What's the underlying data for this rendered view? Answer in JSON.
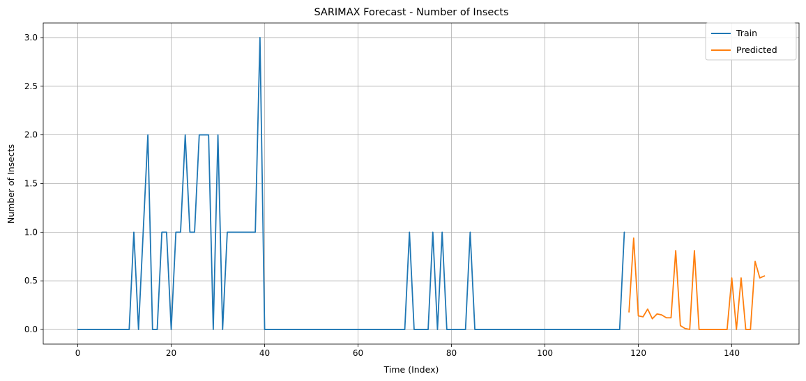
{
  "chart_data": {
    "type": "line",
    "title": "SARIMAX Forecast - Number of Insects",
    "xlabel": "Time (Index)",
    "ylabel": "Number of Insects",
    "xlim": [
      -7.4,
      154.4
    ],
    "ylim": [
      -0.15,
      3.15
    ],
    "xticks": [
      0,
      20,
      40,
      60,
      80,
      100,
      120,
      140
    ],
    "yticks": [
      "0.0",
      "0.5",
      "1.0",
      "1.5",
      "2.0",
      "2.5",
      "3.0"
    ],
    "grid": true,
    "legend": {
      "placement": "top-right"
    },
    "series": [
      {
        "name": "Train",
        "color": "#1f77b4",
        "x": [
          0,
          1,
          2,
          3,
          4,
          5,
          6,
          7,
          8,
          9,
          10,
          11,
          12,
          13,
          14,
          15,
          16,
          17,
          18,
          19,
          20,
          21,
          22,
          23,
          24,
          25,
          26,
          27,
          28,
          29,
          30,
          31,
          32,
          33,
          34,
          35,
          36,
          37,
          38,
          39,
          40,
          41,
          42,
          43,
          44,
          45,
          46,
          47,
          48,
          49,
          50,
          51,
          52,
          53,
          54,
          55,
          56,
          57,
          58,
          59,
          60,
          61,
          62,
          63,
          64,
          65,
          66,
          67,
          68,
          69,
          70,
          71,
          72,
          73,
          74,
          75,
          76,
          77,
          78,
          79,
          80,
          81,
          82,
          83,
          84,
          85,
          86,
          87,
          88,
          89,
          90,
          91,
          92,
          93,
          94,
          95,
          96,
          97,
          98,
          99,
          100,
          101,
          102,
          103,
          104,
          105,
          106,
          107,
          108,
          109,
          110,
          111,
          112,
          113,
          114,
          115,
          116,
          117
        ],
        "y": [
          0,
          0,
          0,
          0,
          0,
          0,
          0,
          0,
          0,
          0,
          0,
          0,
          1,
          0,
          1,
          2,
          0,
          0,
          1,
          1,
          0,
          1,
          1,
          2,
          1,
          1,
          2,
          2,
          2,
          0,
          2,
          0,
          1,
          1,
          1,
          1,
          1,
          1,
          1,
          3,
          0,
          0,
          0,
          0,
          0,
          0,
          0,
          0,
          0,
          0,
          0,
          0,
          0,
          0,
          0,
          0,
          0,
          0,
          0,
          0,
          0,
          0,
          0,
          0,
          0,
          0,
          0,
          0,
          0,
          0,
          0,
          1,
          0,
          0,
          0,
          0,
          1,
          0,
          1,
          0,
          0,
          0,
          0,
          0,
          1,
          0,
          0,
          0,
          0,
          0,
          0,
          0,
          0,
          0,
          0,
          0,
          0,
          0,
          0,
          0,
          0,
          0,
          0,
          0,
          0,
          0,
          0,
          0,
          0,
          0,
          0,
          0,
          0,
          0,
          0,
          0,
          0,
          1
        ]
      },
      {
        "name": "Predicted",
        "color": "#ff7f0e",
        "x": [
          118,
          119,
          120,
          121,
          122,
          123,
          124,
          125,
          126,
          127,
          128,
          129,
          130,
          131,
          132,
          133,
          134,
          135,
          136,
          137,
          138,
          139,
          140,
          141,
          142,
          143,
          144,
          145,
          146,
          147
        ],
        "y": [
          0.18,
          0.94,
          0.14,
          0.13,
          0.21,
          0.11,
          0.16,
          0.15,
          0.12,
          0.12,
          0.81,
          0.04,
          0.01,
          0.0,
          0.81,
          0.0,
          0.0,
          0.0,
          0.0,
          0.0,
          0.0,
          0.0,
          0.53,
          0.0,
          0.53,
          0.0,
          0.0,
          0.7,
          0.53,
          0.55
        ]
      }
    ]
  }
}
